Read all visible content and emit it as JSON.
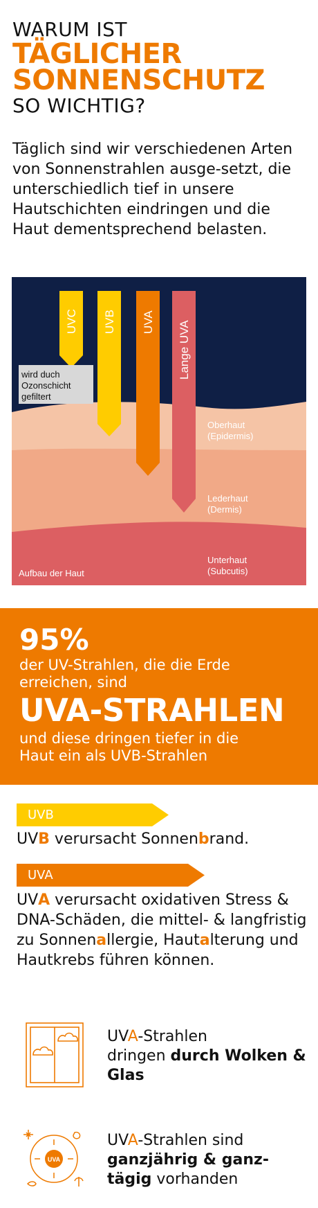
{
  "colors": {
    "orange": "#ee7a00",
    "yellow": "#ffcc00",
    "red": "#dc5f62",
    "navy": "#0f1f45",
    "skin_light": "#f5c4a6",
    "skin_mid": "#f1a987",
    "subcutis": "#dc5f62"
  },
  "header": {
    "line1": "WARUM IST",
    "line2": "TÄGLICHER",
    "line3": "SONNENSCHUTZ",
    "line4": "SO WICHTIG?"
  },
  "intro": "Täglich sind wir verschiedenen Arten von Sonnenstrahlen ausge-setzt, die unterschiedlich tief in unsere Hautschichten eindringen und die Haut dementsprechend belasten.",
  "diagram": {
    "rays": [
      {
        "label": "UVC",
        "color": "#ffcc00"
      },
      {
        "label": "UVB",
        "color": "#ffcc00"
      },
      {
        "label": "UVA",
        "color": "#ee7a00"
      },
      {
        "label": "Lange UVA",
        "color": "#dc5f62"
      }
    ],
    "ozone_note": [
      "wird duch",
      "Ozonschicht",
      "gefiltert"
    ],
    "layers": [
      {
        "name": "Oberhaut",
        "latin": "(Epidermis)"
      },
      {
        "name": "Lederhaut",
        "latin": "(Dermis)"
      },
      {
        "name": "Unterhaut",
        "latin": "(Subcutis)"
      }
    ],
    "caption": "Aufbau der Haut"
  },
  "stat": {
    "percent": "95%",
    "line1": "der UV-Strahlen, die die Erde",
    "line2": "erreichen, sind",
    "highlight": "UVA-STRAHLEN",
    "line3": "und diese dringen tiefer in die",
    "line4": "Haut ein als UVB-Strahlen"
  },
  "uvb": {
    "tag": "UVB",
    "text_pre": "UV",
    "text_hl": "B",
    "text_mid": " verursacht Sonnen",
    "text_hl2": "b",
    "text_post": "rand."
  },
  "uva": {
    "tag": "UVA",
    "p1": "UV",
    "h1": "A",
    "p2": " verursacht oxidativen Stress & DNA-Schäden, die mittel- & langfristig zu Sonnen",
    "h2": "a",
    "p3": "llergie, Haut",
    "h3": "a",
    "p4": "lterung und Hautkrebs führen können."
  },
  "facts": [
    {
      "icon": "window-clouds-icon",
      "p1": "UV",
      "h1": "A",
      "p2": "-Strahlen",
      "line2": "dringen ",
      "bold": "durch Wolken & Glas",
      "post": ""
    },
    {
      "icon": "uva-sun-seasons-icon",
      "icon_text": "UVA",
      "p1": "UV",
      "h1": "A",
      "p2": "-Strahlen sind",
      "line2": "",
      "bold": "ganzjährig & ganz-tägig",
      "post": " vorhanden"
    }
  ]
}
